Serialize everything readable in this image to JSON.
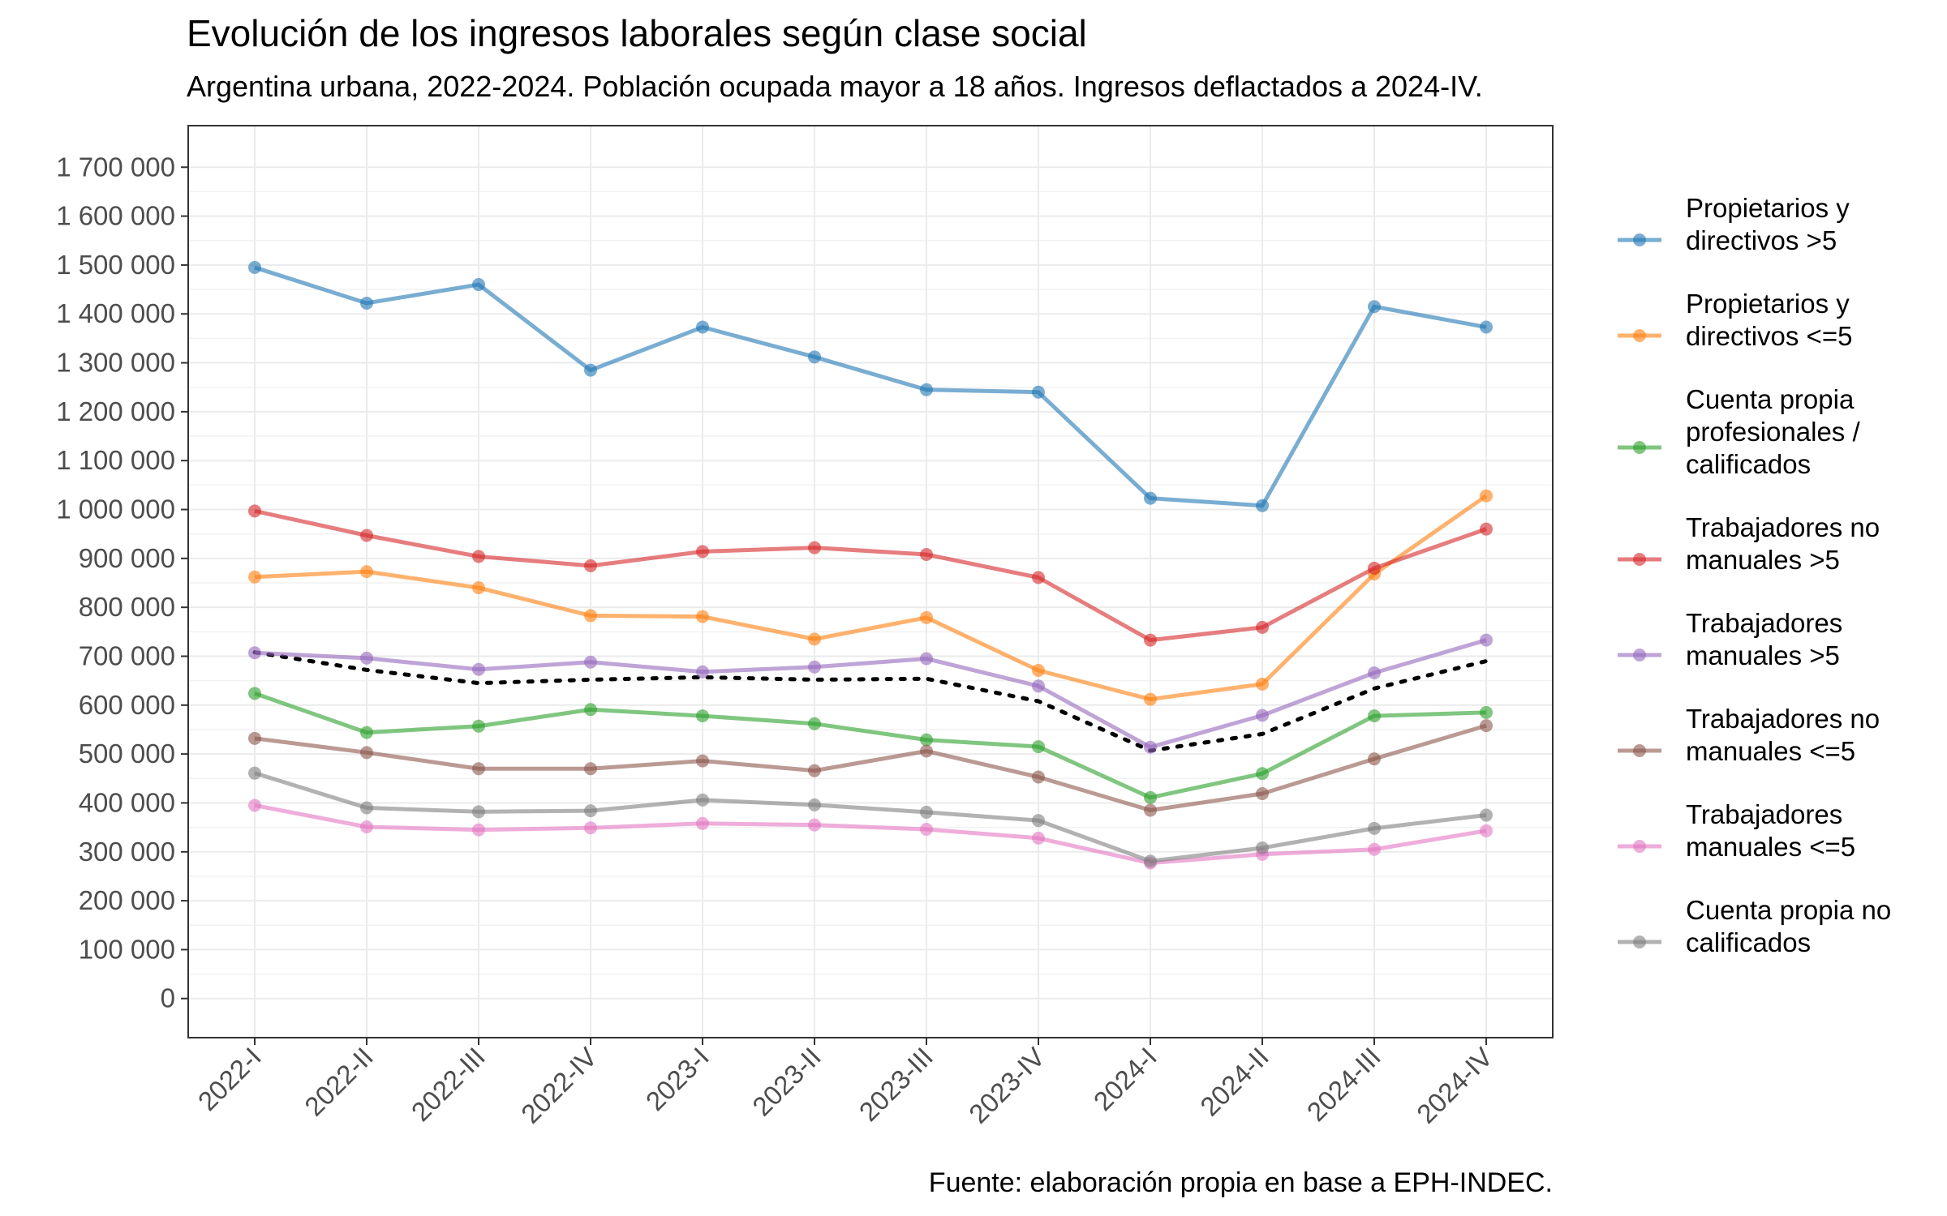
{
  "title": "Evolución de los ingresos laborales según clase social",
  "subtitle": "Argentina urbana, 2022-2024. Población ocupada mayor a 18 años. Ingresos deflactados a 2024-IV.",
  "caption": "Fuente: elaboración propia en base a EPH-INDEC.",
  "chart_data": {
    "type": "line",
    "title": "Evolución de los ingresos laborales según clase social",
    "subtitle": "Argentina urbana, 2022-2024. Población ocupada mayor a 18 años. Ingresos deflactados a 2024-IV.",
    "xlabel": "",
    "ylabel": "",
    "ylim": [
      -80000,
      1785000
    ],
    "y_ticks": [
      0,
      100000,
      200000,
      300000,
      400000,
      500000,
      600000,
      700000,
      800000,
      900000,
      1000000,
      1100000,
      1200000,
      1300000,
      1400000,
      1500000,
      1600000,
      1700000
    ],
    "y_tick_labels": [
      "0",
      "100 000",
      "200 000",
      "300 000",
      "400 000",
      "500 000",
      "600 000",
      "700 000",
      "800 000",
      "900 000",
      "1 000 000",
      "1 100 000",
      "1 200 000",
      "1 300 000",
      "1 400 000",
      "1 500 000",
      "1 600 000",
      "1 700 000"
    ],
    "categories": [
      "2022-I",
      "2022-II",
      "2022-III",
      "2022-IV",
      "2023-I",
      "2023-II",
      "2023-III",
      "2023-IV",
      "2024-I",
      "2024-II",
      "2024-III",
      "2024-IV"
    ],
    "grid": true,
    "legend_position": "right",
    "series": [
      {
        "name": "Propietarios y directivos >5",
        "legend_lines": [
          "Propietarios y",
          "directivos >5"
        ],
        "color": "#1f77b4",
        "values": [
          1495000,
          1422000,
          1460000,
          1285000,
          1373000,
          1312000,
          1245000,
          1240000,
          1023000,
          1008000,
          1415000,
          1373000
        ]
      },
      {
        "name": "Propietarios y directivos <=5",
        "legend_lines": [
          "Propietarios y",
          "directivos <=5"
        ],
        "color": "#ff7f0e",
        "values": [
          862000,
          873000,
          840000,
          783000,
          781000,
          735000,
          779000,
          671000,
          612000,
          643000,
          868000,
          1028000
        ]
      },
      {
        "name": "Cuenta propia profesionales / calificados",
        "legend_lines": [
          "Cuenta propia",
          "profesionales /",
          "calificados"
        ],
        "color": "#2ca02c",
        "values": [
          624000,
          544000,
          557000,
          591000,
          578000,
          562000,
          529000,
          515000,
          411000,
          460000,
          578000,
          585000
        ]
      },
      {
        "name": "Trabajadores no manuales >5",
        "legend_lines": [
          "Trabajadores no",
          "manuales >5"
        ],
        "color": "#d62728",
        "values": [
          997000,
          947000,
          904000,
          885000,
          914000,
          922000,
          908000,
          861000,
          733000,
          759000,
          880000,
          960000
        ]
      },
      {
        "name": "Trabajadores manuales >5",
        "legend_lines": [
          "Trabajadores",
          "manuales >5"
        ],
        "color": "#9467bd",
        "values": [
          707000,
          696000,
          673000,
          688000,
          668000,
          678000,
          695000,
          639000,
          514000,
          579000,
          666000,
          733000
        ]
      },
      {
        "name": "Trabajadores no manuales <=5",
        "legend_lines": [
          "Trabajadores no",
          "manuales <=5"
        ],
        "color": "#8c564b",
        "values": [
          532000,
          503000,
          470000,
          470000,
          486000,
          466000,
          506000,
          453000,
          385000,
          419000,
          490000,
          558000
        ]
      },
      {
        "name": "Trabajadores manuales <=5",
        "legend_lines": [
          "Trabajadores",
          "manuales <=5"
        ],
        "color": "#e377c2",
        "values": [
          395000,
          351000,
          345000,
          349000,
          358000,
          355000,
          346000,
          328000,
          277000,
          295000,
          305000,
          343000
        ]
      },
      {
        "name": "Cuenta propia no calificados",
        "legend_lines": [
          "Cuenta propia no",
          "calificados"
        ],
        "color": "#7f7f7f",
        "values": [
          461000,
          390000,
          382000,
          384000,
          406000,
          396000,
          381000,
          364000,
          281000,
          308000,
          348000,
          375000
        ]
      }
    ],
    "reference_line": {
      "style": "dotted",
      "color": "#000000",
      "values": [
        708000,
        672000,
        645000,
        652000,
        657000,
        652000,
        654000,
        608000,
        507000,
        541000,
        634000,
        690000
      ]
    }
  }
}
